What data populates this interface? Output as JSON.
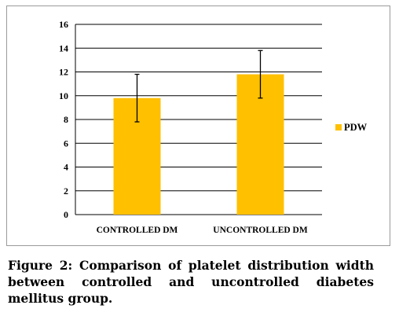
{
  "chart_data": {
    "type": "bar",
    "categories": [
      "CONTROLLED DM",
      "UNCONTROLLED DM"
    ],
    "series": [
      {
        "name": "PDW",
        "values": [
          9.8,
          11.8
        ],
        "error": [
          2.0,
          2.0
        ]
      }
    ],
    "ylim": [
      0,
      16
    ],
    "yticks": [
      "0",
      "2",
      "4",
      "6",
      "8",
      "10",
      "12",
      "14",
      "16"
    ],
    "grid": true,
    "legend": "right",
    "bar_color": "#FFC000",
    "error_bar_color": "#000000",
    "gridline_color": "#000000"
  },
  "caption": "Figure 2: Comparison of platelet distribution width between controlled and uncontrolled diabetes mellitus group."
}
